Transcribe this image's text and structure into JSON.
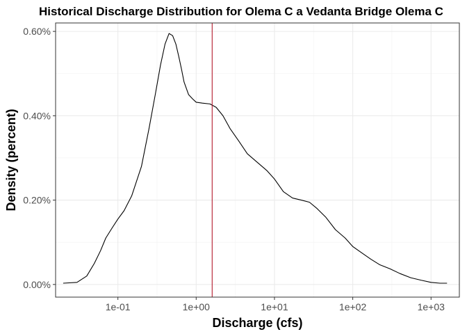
{
  "chart_data": {
    "type": "line",
    "title": "Historical Discharge Distribution for Olema C a Vedanta Bridge Olema C",
    "xlabel": "Discharge (cfs)",
    "ylabel": "Density (percent)",
    "x_scale": "log10",
    "xlim": [
      0.016,
      2300
    ],
    "ylim": [
      -0.0003,
      0.0062
    ],
    "x_ticks": [
      {
        "value": 0.1,
        "label": "1e-01"
      },
      {
        "value": 1,
        "label": "1e+00"
      },
      {
        "value": 10,
        "label": "1e+01"
      },
      {
        "value": 100,
        "label": "1e+02"
      },
      {
        "value": 1000,
        "label": "1e+03"
      }
    ],
    "y_ticks": [
      {
        "value": 0,
        "label": "0.00%"
      },
      {
        "value": 0.002,
        "label": "0.20%"
      },
      {
        "value": 0.004,
        "label": "0.40%"
      },
      {
        "value": 0.006,
        "label": "0.60%"
      }
    ],
    "grid": true,
    "series": [
      {
        "color": "#000000",
        "x": [
          0.02,
          0.03,
          0.04,
          0.05,
          0.06,
          0.07,
          0.085,
          0.1,
          0.12,
          0.15,
          0.2,
          0.25,
          0.3,
          0.35,
          0.4,
          0.45,
          0.5,
          0.55,
          0.6,
          0.65,
          0.7,
          0.8,
          0.9,
          1.0,
          1.2,
          1.5,
          1.8,
          2.2,
          2.7,
          3.5,
          4.5,
          6,
          8,
          10,
          13,
          17,
          22,
          28,
          35,
          45,
          60,
          80,
          100,
          130,
          170,
          220,
          300,
          400,
          550,
          750,
          1000,
          1300,
          1600
        ],
        "y": [
          3e-05,
          5e-05,
          0.0002,
          0.0005,
          0.0008,
          0.0011,
          0.00135,
          0.00155,
          0.00175,
          0.0021,
          0.0028,
          0.0037,
          0.0045,
          0.0052,
          0.0057,
          0.00595,
          0.0059,
          0.0057,
          0.0054,
          0.0051,
          0.0048,
          0.0045,
          0.0044,
          0.00432,
          0.0043,
          0.00428,
          0.0042,
          0.004,
          0.0037,
          0.0034,
          0.0031,
          0.0029,
          0.0027,
          0.0025,
          0.0022,
          0.00205,
          0.002,
          0.00195,
          0.0018,
          0.0016,
          0.0013,
          0.0011,
          0.0009,
          0.00075,
          0.0006,
          0.00047,
          0.00037,
          0.00026,
          0.00016,
          0.0001,
          5e-05,
          3e-05,
          3e-05
        ]
      }
    ],
    "vline": {
      "x": 1.6,
      "color": "#b2182b"
    }
  }
}
